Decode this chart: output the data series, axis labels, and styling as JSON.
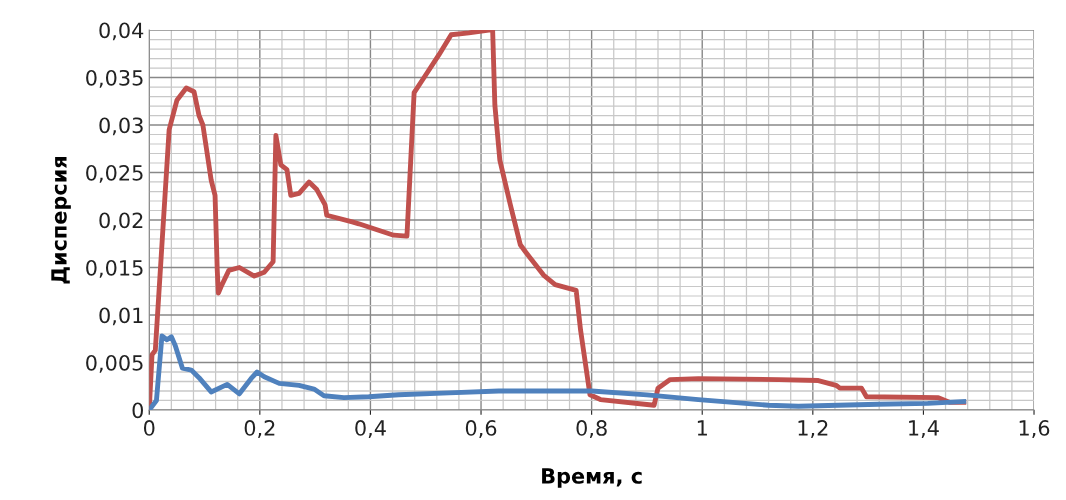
{
  "chart_data": {
    "type": "line",
    "xlabel": "Время, с",
    "ylabel": "Дисперсия",
    "xlim": [
      0,
      1.6
    ],
    "ylim": [
      0,
      0.04
    ],
    "xticks": [
      0,
      {
        "value": 0.2,
        "label": "0,2"
      },
      {
        "value": 0.4,
        "label": "0,4"
      },
      {
        "value": 0.6,
        "label": "0,6"
      },
      {
        "value": 0.8,
        "label": "0,8"
      },
      1,
      {
        "value": 1.2,
        "label": "1,2"
      },
      {
        "value": 1.4,
        "label": "1,4"
      },
      {
        "value": 1.6,
        "label": "1,6"
      }
    ],
    "yticks": [
      0,
      {
        "value": 0.005,
        "label": "0,005"
      },
      {
        "value": 0.01,
        "label": "0,01"
      },
      {
        "value": 0.015,
        "label": "0,015"
      },
      {
        "value": 0.02,
        "label": "0,02"
      },
      {
        "value": 0.025,
        "label": "0,025"
      },
      {
        "value": 0.03,
        "label": "0,03"
      },
      {
        "value": 0.035,
        "label": "0,035"
      },
      {
        "value": 0.04,
        "label": "0,04"
      }
    ],
    "grid": true,
    "marker": "none",
    "line_style": "solid",
    "series": [
      {
        "color": "#c0504d",
        "x": [
          0,
          0.005,
          0.011,
          0.036,
          0.05,
          0.067,
          0.081,
          0.09,
          0.097,
          0.112,
          0.119,
          0.123,
          0.125,
          0.13,
          0.144,
          0.163,
          0.19,
          0.208,
          0.224,
          0.229,
          0.238,
          0.249,
          0.256,
          0.271,
          0.289,
          0.303,
          0.318,
          0.321,
          0.367,
          0.379,
          0.442,
          0.466,
          0.479,
          0.497,
          0.524,
          0.546,
          0.578,
          0.614,
          0.621,
          0.625,
          0.634,
          0.653,
          0.671,
          0.681,
          0.713,
          0.734,
          0.772,
          0.78,
          0.797,
          0.816,
          0.913,
          0.92,
          0.942,
          0.993,
          1.138,
          1.21,
          1.242,
          1.249,
          1.288,
          1.297,
          1.427,
          1.448,
          1.473
        ],
        "values": [
          0,
          0.0058,
          0.0063,
          0.0295,
          0.0326,
          0.0339,
          0.0335,
          0.031,
          0.03,
          0.0242,
          0.0226,
          0.0147,
          0.0123,
          0.013,
          0.0147,
          0.015,
          0.0141,
          0.0145,
          0.0156,
          0.0289,
          0.0258,
          0.0253,
          0.0226,
          0.0228,
          0.024,
          0.0232,
          0.0216,
          0.0205,
          0.0198,
          0.0196,
          0.0184,
          0.0183,
          0.0334,
          0.035,
          0.0374,
          0.0395,
          0.0397,
          0.04,
          0.04,
          0.0321,
          0.0263,
          0.0216,
          0.0174,
          0.0166,
          0.0142,
          0.0132,
          0.0126,
          0.0084,
          0.0016,
          0.0011,
          0.0005,
          0.0023,
          0.0032,
          0.0033,
          0.0032,
          0.0031,
          0.0026,
          0.0023,
          0.0023,
          0.0014,
          0.0013,
          0.0008,
          0.0008
        ]
      },
      {
        "color": "#4f81bd",
        "x": [
          0,
          0.013,
          0.023,
          0.032,
          0.04,
          0.047,
          0.06,
          0.076,
          0.09,
          0.112,
          0.141,
          0.163,
          0.184,
          0.195,
          0.208,
          0.235,
          0.271,
          0.298,
          0.316,
          0.352,
          0.397,
          0.451,
          0.542,
          0.632,
          0.8,
          0.9,
          0.993,
          1.12,
          1.174,
          1.246,
          1.318,
          1.408,
          1.473
        ],
        "values": [
          0,
          0.001,
          0.0078,
          0.0074,
          0.0077,
          0.0068,
          0.0044,
          0.0042,
          0.0034,
          0.0019,
          0.0027,
          0.0017,
          0.0033,
          0.004,
          0.0035,
          0.0028,
          0.0026,
          0.0022,
          0.0015,
          0.0013,
          0.0014,
          0.0016,
          0.0018,
          0.002,
          0.002,
          0.0016,
          0.0011,
          0.0005,
          0.0004,
          0.0005,
          0.0006,
          0.0007,
          0.0009
        ]
      }
    ]
  }
}
